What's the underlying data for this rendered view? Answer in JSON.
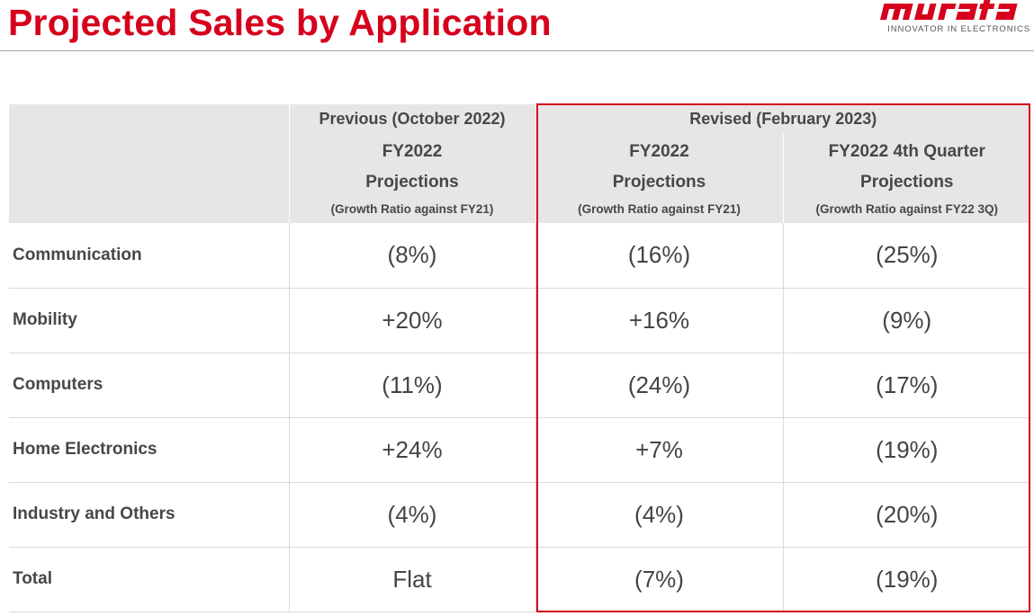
{
  "header": {
    "title": "Projected Sales by Application",
    "logo_text": "murata",
    "tagline": "INNOVATOR IN ELECTRONICS",
    "accent_color": "#d6001c"
  },
  "table": {
    "groups": {
      "previous": "Previous (October 2022)",
      "revised": "Revised (February 2023)"
    },
    "columns": [
      {
        "fy": "FY2022",
        "proj": "Projections",
        "growth": "(Growth Ratio against FY21)"
      },
      {
        "fy": "FY2022",
        "proj": "Projections",
        "growth": "(Growth Ratio against FY21)"
      },
      {
        "fy": "FY2022 4th Quarter",
        "proj": "Projections",
        "growth": "(Growth Ratio against FY22 3Q)"
      }
    ],
    "rows": [
      {
        "label": "Communication",
        "values": [
          "(8%)",
          "(16%)",
          "(25%)"
        ]
      },
      {
        "label": "Mobility",
        "values": [
          "+20%",
          "+16%",
          "(9%)"
        ]
      },
      {
        "label": "Computers",
        "values": [
          "(11%)",
          "(24%)",
          "(17%)"
        ]
      },
      {
        "label": "Home Electronics",
        "values": [
          "+24%",
          "+7%",
          "(19%)"
        ]
      },
      {
        "label": "Industry and Others",
        "values": [
          "(4%)",
          "(4%)",
          "(20%)"
        ]
      },
      {
        "label": "Total",
        "values": [
          "Flat",
          "(7%)",
          "(19%)"
        ]
      }
    ]
  }
}
